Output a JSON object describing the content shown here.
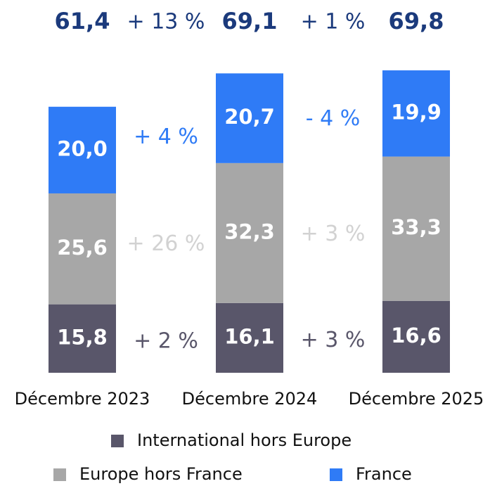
{
  "chart_data": {
    "type": "stacked_bar",
    "categories": [
      "Décembre 2023",
      "Décembre 2024",
      "Décembre 2025"
    ],
    "series": [
      {
        "name": "International hors Europe",
        "color": "#59566a",
        "change_color": "#59566a",
        "values": [
          15.8,
          16.1,
          16.6
        ],
        "value_labels": [
          "15,8",
          "16,1",
          "16,6"
        ],
        "changes": [
          "+ 2 %",
          "+ 3 %"
        ]
      },
      {
        "name": "Europe hors France",
        "color": "#a7a7a7",
        "change_color": "#d2d2d2",
        "values": [
          25.6,
          32.3,
          33.3
        ],
        "value_labels": [
          "25,6",
          "32,3",
          "33,3"
        ],
        "changes": [
          "+ 26 %",
          "+ 3 %"
        ]
      },
      {
        "name": "France",
        "color": "#2f7bf6",
        "change_color": "#2f7bf6",
        "values": [
          20.0,
          20.7,
          19.9
        ],
        "value_labels": [
          "20,0",
          "20,7",
          "19,9"
        ],
        "changes": [
          "+ 4 %",
          "- 4 %"
        ]
      }
    ],
    "totals": {
      "values": [
        61.4,
        69.1,
        69.8
      ],
      "value_labels": [
        "61,4",
        "69,1",
        "69,8"
      ],
      "changes": [
        "+ 13 %",
        "+ 1 %"
      ],
      "color": "#1b3a7c"
    }
  }
}
